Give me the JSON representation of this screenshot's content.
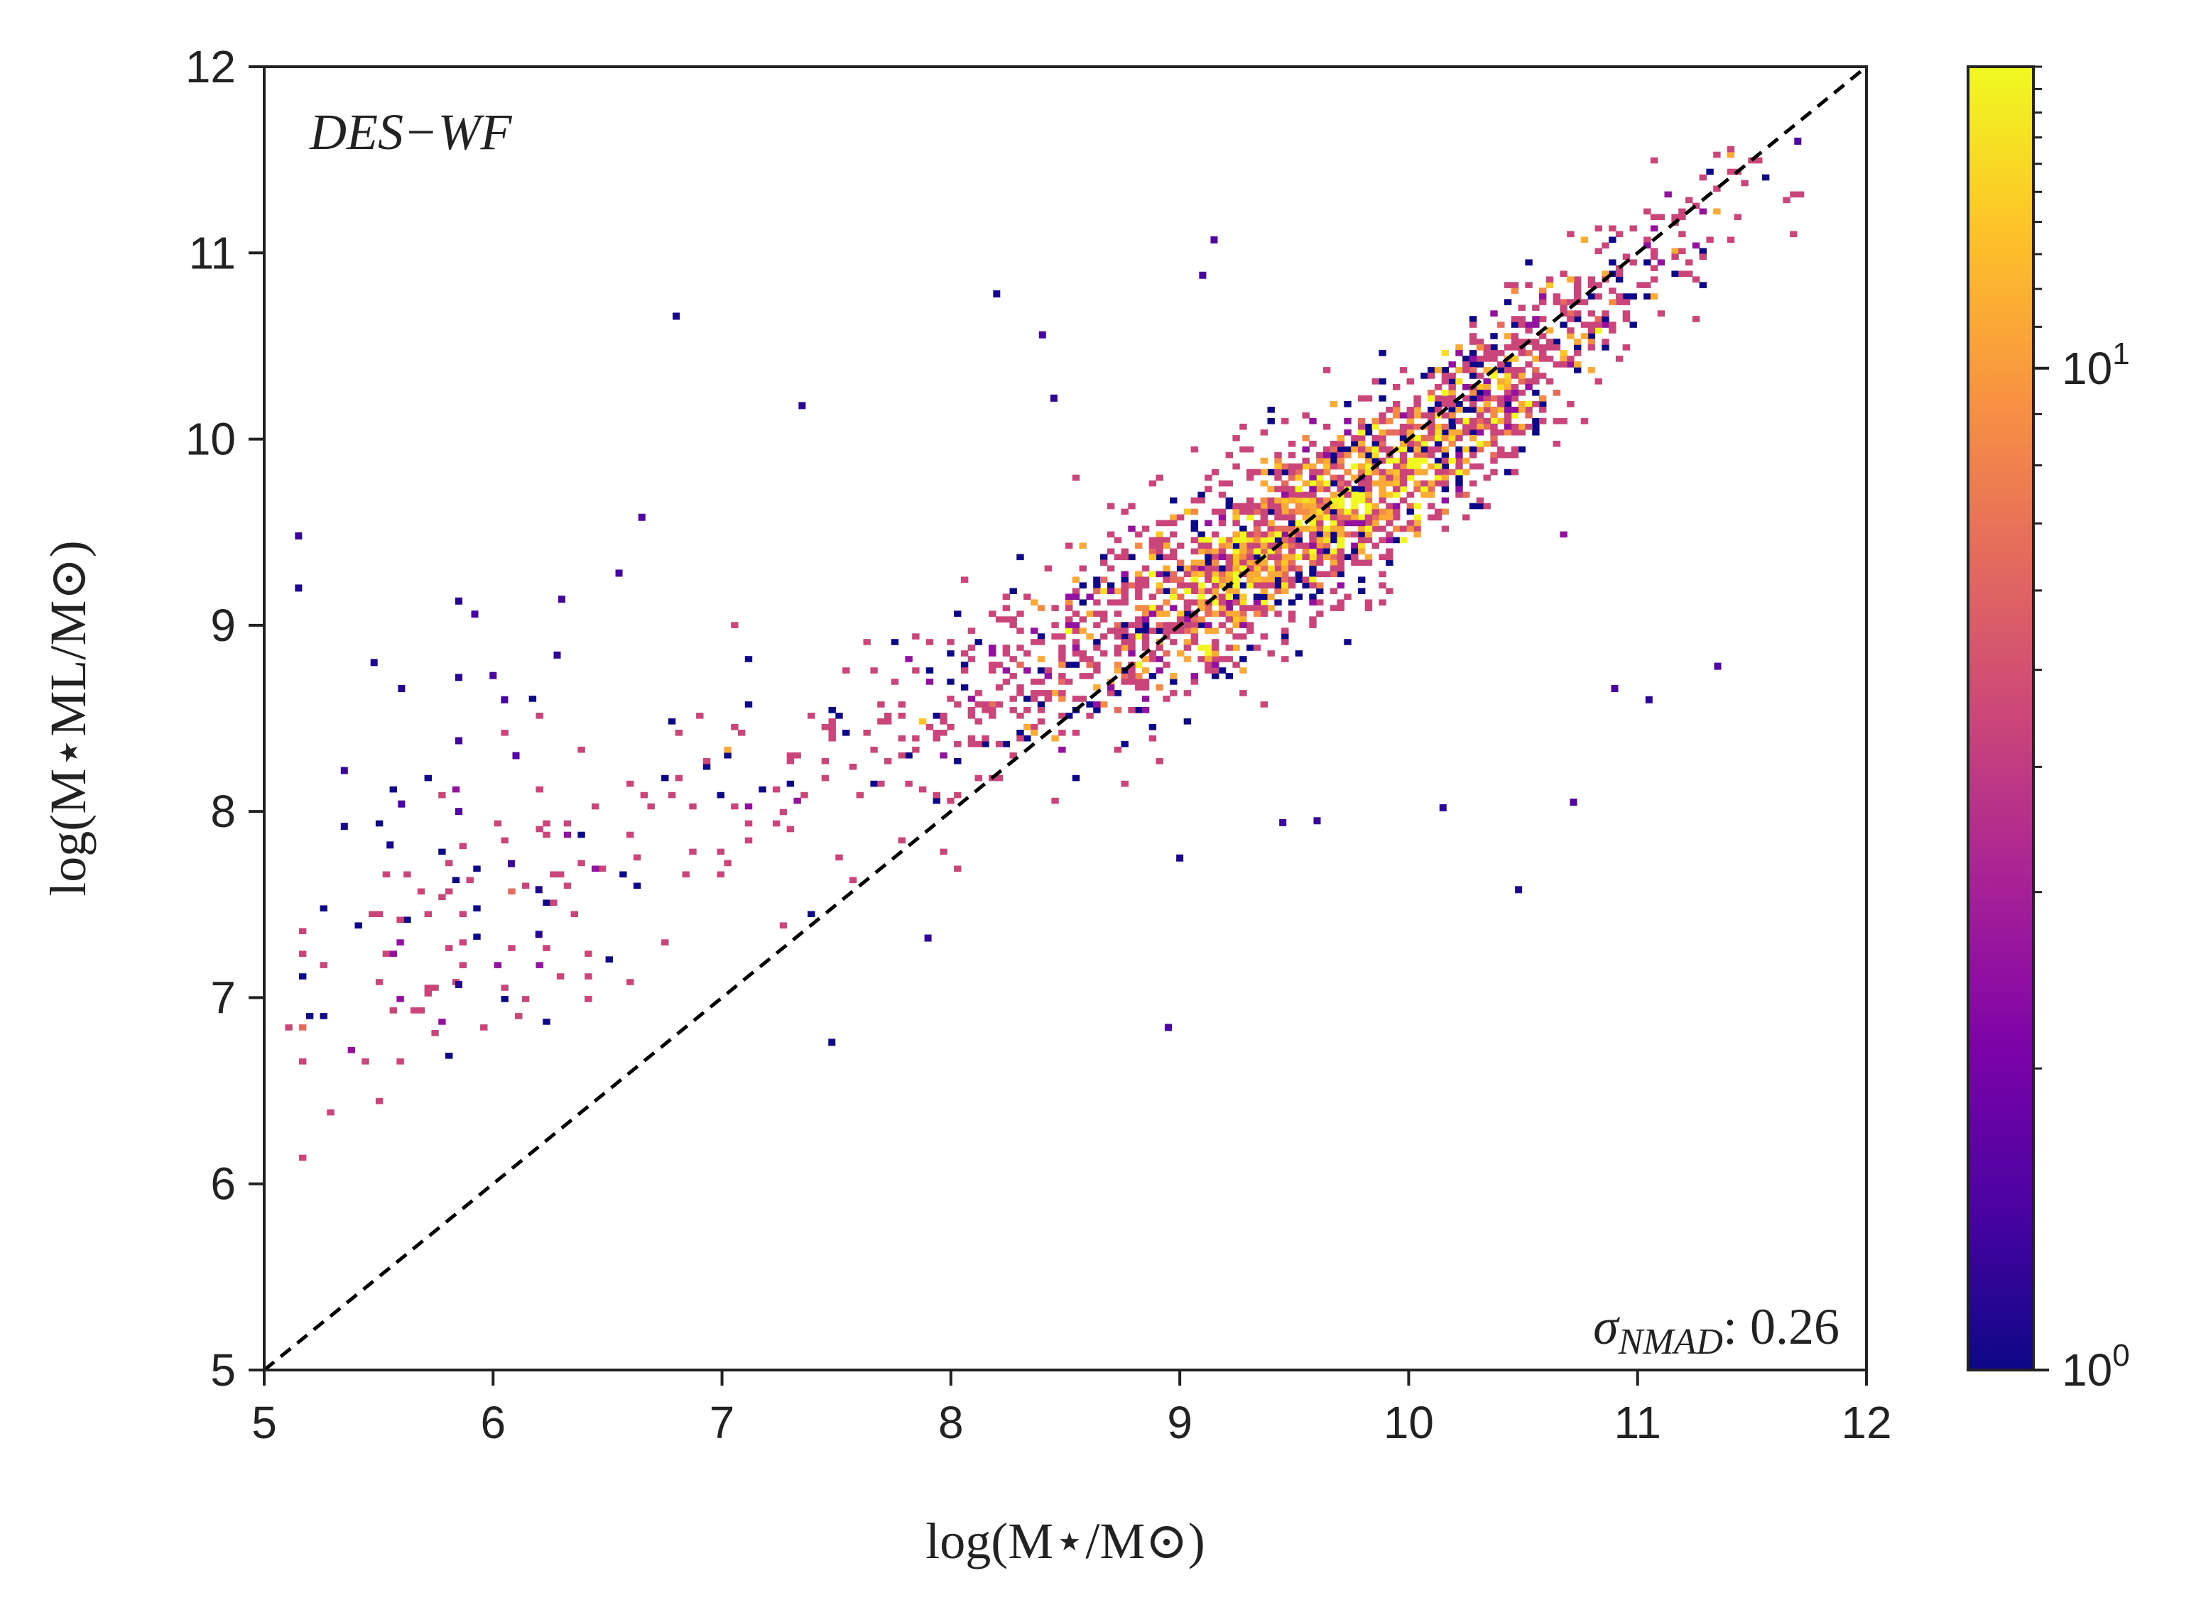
{
  "chart_data": {
    "type": "heatmap",
    "subtype": "2d-histogram-scatter",
    "title": "",
    "xlabel": "log(M⋆/M⊙)",
    "ylabel": "log(M⋆ML/M⊙)",
    "xlim": [
      5,
      12
    ],
    "ylim": [
      5,
      12
    ],
    "x_ticks": [
      5,
      6,
      7,
      8,
      9,
      10,
      11,
      12
    ],
    "y_ticks": [
      5,
      6,
      7,
      8,
      9,
      10,
      11,
      12
    ],
    "x_tick_labels": [
      "5",
      "6",
      "7",
      "8",
      "9",
      "10",
      "11",
      "12"
    ],
    "y_tick_labels": [
      "5",
      "6",
      "7",
      "8",
      "9",
      "10",
      "11",
      "12"
    ],
    "reference_line": {
      "style": "dashed",
      "color": "#000000",
      "from": [
        5,
        5
      ],
      "to": [
        12,
        12
      ]
    },
    "annotations": {
      "survey_label": "DES−WF",
      "sigma_label": "σ",
      "sigma_subscript": "NMAD",
      "sigma_value": ": 0.26"
    },
    "colorbar": {
      "colormap": "plasma",
      "scale": "log",
      "range": [
        1,
        20
      ],
      "tick_base": "10",
      "tick_exponents": [
        "0",
        "1"
      ],
      "tick_values": [
        1,
        10
      ]
    },
    "density": {
      "n_points": 6500,
      "ridge": [
        [
          7.5,
          8.3
        ],
        [
          8.5,
          8.85
        ],
        [
          9.0,
          9.15
        ],
        [
          9.5,
          9.5
        ],
        [
          10.0,
          9.85
        ],
        [
          10.5,
          10.35
        ],
        [
          11.0,
          10.9
        ],
        [
          11.5,
          11.3
        ]
      ],
      "core_center": [
        9.6,
        9.45
      ],
      "core_spread": [
        0.7,
        0.55
      ],
      "x_range_sampled": [
        5.1,
        11.8
      ]
    },
    "outliers": [
      [
        5.15,
        9.48
      ],
      [
        5.15,
        9.2
      ],
      [
        5.35,
        8.22
      ],
      [
        5.35,
        7.92
      ],
      [
        5.48,
        8.8
      ],
      [
        5.55,
        7.82
      ],
      [
        5.6,
        8.66
      ],
      [
        5.6,
        8.04
      ],
      [
        5.85,
        9.13
      ],
      [
        5.85,
        8.72
      ],
      [
        5.85,
        8.38
      ],
      [
        5.85,
        8.0
      ],
      [
        5.85,
        7.07
      ],
      [
        5.92,
        9.06
      ],
      [
        6.0,
        8.73
      ],
      [
        6.05,
        8.6
      ],
      [
        6.08,
        7.72
      ],
      [
        6.1,
        8.3
      ],
      [
        6.2,
        7.34
      ],
      [
        6.2,
        7.58
      ],
      [
        6.28,
        8.84
      ],
      [
        6.3,
        9.14
      ],
      [
        6.55,
        9.28
      ],
      [
        6.8,
        10.66
      ],
      [
        6.65,
        9.58
      ],
      [
        7.35,
        10.18
      ],
      [
        7.48,
        6.76
      ],
      [
        7.9,
        7.32
      ],
      [
        8.2,
        10.78
      ],
      [
        8.4,
        10.56
      ],
      [
        8.45,
        10.22
      ],
      [
        8.95,
        6.84
      ],
      [
        9.0,
        7.75
      ],
      [
        9.15,
        11.07
      ],
      [
        9.1,
        10.88
      ],
      [
        9.45,
        7.94
      ],
      [
        9.6,
        7.95
      ],
      [
        10.15,
        8.02
      ],
      [
        10.48,
        7.58
      ],
      [
        10.72,
        8.05
      ],
      [
        10.9,
        8.66
      ],
      [
        11.05,
        8.6
      ],
      [
        11.35,
        8.78
      ],
      [
        11.7,
        11.6
      ]
    ]
  }
}
